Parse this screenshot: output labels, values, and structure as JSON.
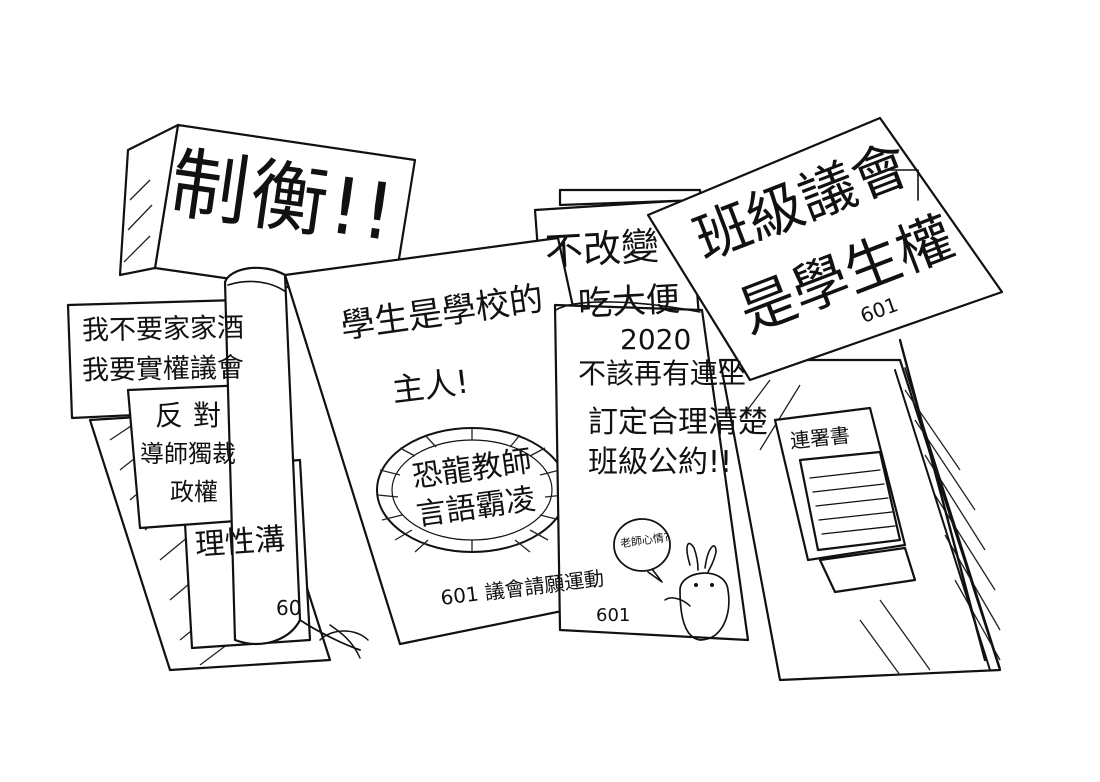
{
  "colors": {
    "ink": "#111111",
    "paper": "#ffffff"
  },
  "signs": {
    "top_left": {
      "text": "制衡!!"
    },
    "top_right": {
      "line1": "班級議會",
      "line2": "是學生權",
      "number": "601"
    },
    "left_top": {
      "line1": "我不要家家酒",
      "line2": "我要實權議會"
    },
    "left_mid": {
      "line1": "反對",
      "line2": "導師獨裁",
      "line3": "政權"
    },
    "left_bottom": {
      "text": "理性溝",
      "number": "60"
    }
  },
  "center_poster": {
    "line1": "學生是學校的",
    "line2": "主人!",
    "bubble_line1": "恐龍教師",
    "bubble_line2": "言語霸凌",
    "footer": "601 議會請願運動"
  },
  "center_right_poster": {
    "line1": "2020",
    "line2": "不該再有連坐",
    "line3": "訂定合理清楚",
    "line4": "班級公約!!",
    "bubble": "老師心情?",
    "number": "601"
  },
  "back_right_poster": {
    "line1": "不改變",
    "line2": "吃大便"
  },
  "petition": {
    "label": "連署書"
  }
}
